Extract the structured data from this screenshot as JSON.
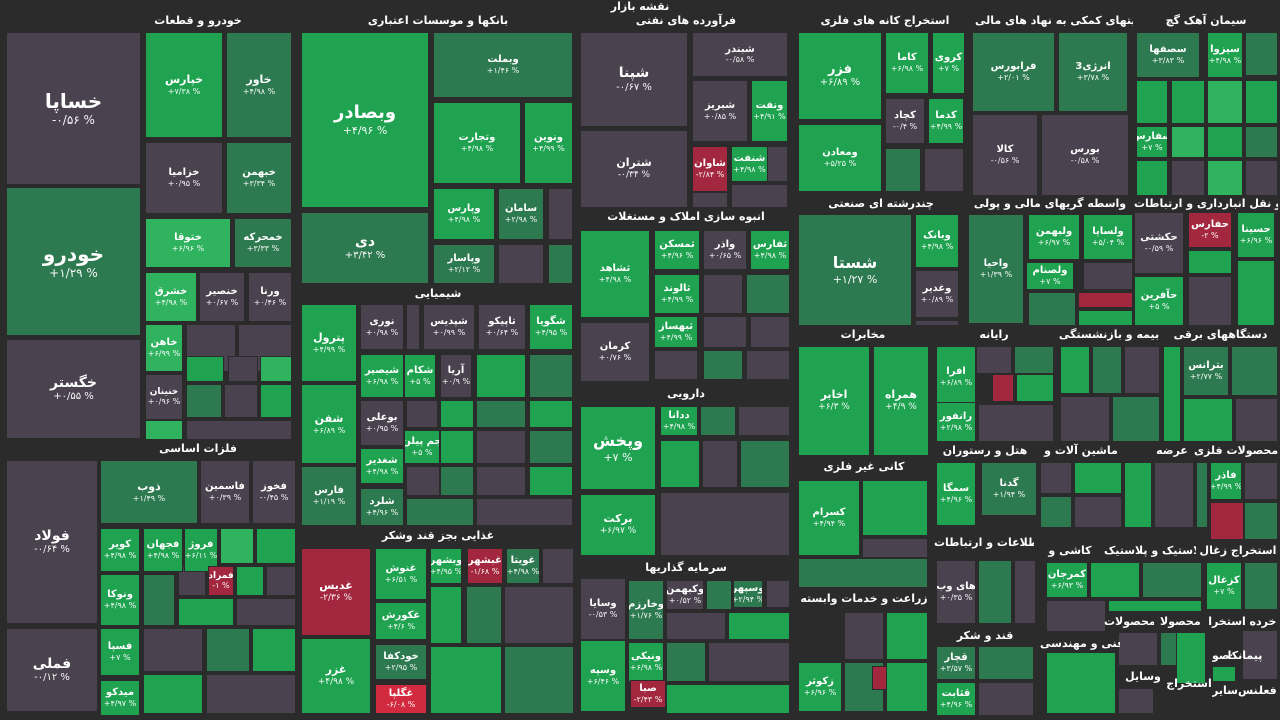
{
  "title": "نقشه بازار",
  "colors": {
    "background": "#2b2b2b",
    "neutral": "#4a424f",
    "green_light": "#2fb35f",
    "green_strong": "#1fa351",
    "green_dark": "#2e7a50",
    "red": "#a3283f",
    "red_bright": "#d22b3f"
  },
  "sectors": [
    {
      "name": "خودرو و قطعات"
    },
    {
      "name": "بانکها و موسسات اعتباری"
    },
    {
      "name": "فرآورده های نفتی"
    },
    {
      "name": "استخراج کانه های فلزی"
    },
    {
      "name": "فعالیتهای کمکی به نهاد های مالی"
    },
    {
      "name": "سیمان آهک گچ"
    },
    {
      "name": "انبوه سازی املاک و مستغلات"
    },
    {
      "name": "چندرشته ای صنعتی"
    },
    {
      "name": "واسطه گریهای مالی و پولی"
    },
    {
      "name": "حمل و نقل انبارداری و ارتباطات"
    },
    {
      "name": "شیمیایی"
    },
    {
      "name": "فلزات اساسی"
    },
    {
      "name": "دارویی"
    },
    {
      "name": "مخابرات"
    },
    {
      "name": "رایانه"
    },
    {
      "name": "بیمه و بازنشستگی"
    },
    {
      "name": "دستگاههای برقی"
    },
    {
      "name": "کانی غیر فلزی"
    },
    {
      "name": "هتل و رستوران"
    },
    {
      "name": "ماشین آلات و"
    },
    {
      "name": "عرضه"
    },
    {
      "name": "محصولات فلزی"
    },
    {
      "name": "غذایی بجز قند وشکر"
    },
    {
      "name": "سرمایه گذاریها"
    },
    {
      "name": "اطلاعات و ارتباطات"
    },
    {
      "name": "کاشی و"
    },
    {
      "name": "لاستیک و پلاستیک"
    },
    {
      "name": "استخراج زغال"
    },
    {
      "name": "زراعت و خدمات وابسته"
    },
    {
      "name": "قند و شکر"
    },
    {
      "name": "محصولات"
    },
    {
      "name": "محصولا"
    },
    {
      "name": "استخرا"
    },
    {
      "name": "خرده"
    },
    {
      "name": "فنی و مهندسی"
    },
    {
      "name": "پیمانکا"
    },
    {
      "name": "محصو"
    },
    {
      "name": "وسایل"
    },
    {
      "name": "استخراج"
    },
    {
      "name": "فعا"
    },
    {
      "name": "منس"
    },
    {
      "name": "سایر"
    }
  ],
  "tiles": [
    {
      "symbol": "خساپا",
      "change": "-۰/۵۶ %",
      "tone": "neutral"
    },
    {
      "symbol": "خودرو",
      "change": "+۱/۲۹ %",
      "tone": "green_dark"
    },
    {
      "symbol": "خگستر",
      "change": "+۰/۵۵ %",
      "tone": "neutral"
    },
    {
      "symbol": "خپارس",
      "change": "+۷/۳۸ %",
      "tone": "green_strong"
    },
    {
      "symbol": "خاور",
      "change": "+۴/۹۸ %",
      "tone": "green_dark"
    },
    {
      "symbol": "خزامیا",
      "change": "+۰/۹۵ %",
      "tone": "neutral"
    },
    {
      "symbol": "خبهمن",
      "change": "+۳/۳۴ %",
      "tone": "green_dark"
    },
    {
      "symbol": "ختوقا",
      "change": "+۶/۹۶ %",
      "tone": "green_light"
    },
    {
      "symbol": "خمحرکه",
      "change": "+۳/۳۳ %",
      "tone": "green_dark"
    },
    {
      "symbol": "خشرق",
      "change": "+۴/۹۸ %",
      "tone": "green_light"
    },
    {
      "symbol": "خنصیر",
      "change": "+۰/۶۷ %",
      "tone": "neutral"
    },
    {
      "symbol": "ورنا",
      "change": "+۰/۴۶ %",
      "tone": "neutral"
    },
    {
      "symbol": "خاهن",
      "change": "+۶/۹۹ %",
      "tone": "green_light"
    },
    {
      "symbol": "خنینان",
      "change": "+۰/۹۶ %",
      "tone": "neutral"
    },
    {
      "symbol": "وبصادر",
      "change": "+۴/۹۶ %",
      "tone": "green_strong"
    },
    {
      "symbol": "دی",
      "change": "+۳/۴۲ %",
      "tone": "green_dark"
    },
    {
      "symbol": "وبملت",
      "change": "+۱/۴۶ %",
      "tone": "green_dark"
    },
    {
      "symbol": "وتجارت",
      "change": "+۴/۹۸ %",
      "tone": "green_strong"
    },
    {
      "symbol": "ونوین",
      "change": "+۴/۹۹ %",
      "tone": "green_strong"
    },
    {
      "symbol": "وپارس",
      "change": "+۴/۹۸ %",
      "tone": "green_strong"
    },
    {
      "symbol": "سامان",
      "change": "+۲/۹۸ %",
      "tone": "green_dark"
    },
    {
      "symbol": "وپاسار",
      "change": "+۲/۱۲ %",
      "tone": "green_dark"
    },
    {
      "symbol": "شپنا",
      "change": "-۰/۶۷ %",
      "tone": "neutral"
    },
    {
      "symbol": "شتران",
      "change": "-۰/۳۴ %",
      "tone": "neutral"
    },
    {
      "symbol": "شبندر",
      "change": "-۰/۵۸ %",
      "tone": "neutral"
    },
    {
      "symbol": "شبریز",
      "change": "+۰/۸۵ %",
      "tone": "neutral"
    },
    {
      "symbol": "ونفت",
      "change": "+۴/۹۱ %",
      "tone": "green_strong"
    },
    {
      "symbol": "شاوان",
      "change": "-۲/۸۴ %",
      "tone": "red"
    },
    {
      "symbol": "شنفت",
      "change": "+۴/۹۸ %",
      "tone": "green_strong"
    },
    {
      "symbol": "فزر",
      "change": "+۶/۸۹ %",
      "tone": "green_strong"
    },
    {
      "symbol": "ومعادن",
      "change": "+۵/۲۵ %",
      "tone": "green_strong"
    },
    {
      "symbol": "کاما",
      "change": "+۶/۹۸ %",
      "tone": "green_strong"
    },
    {
      "symbol": "کروی",
      "change": "+۷ %",
      "tone": "green_strong"
    },
    {
      "symbol": "کچاد",
      "change": "-۰/۴ %",
      "tone": "neutral"
    },
    {
      "symbol": "کدما",
      "change": "+۴/۹۹ %",
      "tone": "green_strong"
    },
    {
      "symbol": "فرابورس",
      "change": "+۲/۰۱ %",
      "tone": "green_dark"
    },
    {
      "symbol": "انرژی3",
      "change": "+۳/۷۸ %",
      "tone": "green_dark"
    },
    {
      "symbol": "کالا",
      "change": "-۰/۵۶ %",
      "tone": "neutral"
    },
    {
      "symbol": "بورس",
      "change": "-۰/۵۸ %",
      "tone": "neutral"
    },
    {
      "symbol": "سصفها",
      "change": "+۳/۸۳ %",
      "tone": "green_dark"
    },
    {
      "symbol": "سیزوا",
      "change": "+۴/۹۸ %",
      "tone": "green_strong"
    },
    {
      "symbol": "سفارس",
      "change": "+۷ %",
      "tone": "green_strong"
    },
    {
      "symbol": "ثشاهد",
      "change": "+۴/۹۸ %",
      "tone": "green_strong"
    },
    {
      "symbol": "ثمسکن",
      "change": "+۴/۹۶ %",
      "tone": "green_strong"
    },
    {
      "symbol": "واذر",
      "change": "+۰/۶۵ %",
      "tone": "neutral"
    },
    {
      "symbol": "ثفارس",
      "change": "+۴/۹۸ %",
      "tone": "green_strong"
    },
    {
      "symbol": "ثالوند",
      "change": "+۴/۹۹ %",
      "tone": "green_strong"
    },
    {
      "symbol": "ثبهساز",
      "change": "+۴/۹۹ %",
      "tone": "green_strong"
    },
    {
      "symbol": "کرمان",
      "change": "+۰/۷۶ %",
      "tone": "neutral"
    },
    {
      "symbol": "شستا",
      "change": "+۱/۲۷ %",
      "tone": "green_dark"
    },
    {
      "symbol": "وبانک",
      "change": "+۴/۹۸ %",
      "tone": "green_strong"
    },
    {
      "symbol": "وغدیر",
      "change": "+۰/۸۹ %",
      "tone": "neutral"
    },
    {
      "symbol": "واحیا",
      "change": "+۱/۳۹ %",
      "tone": "green_dark"
    },
    {
      "symbol": "ولبهمن",
      "change": "+۶/۹۷ %",
      "tone": "green_strong"
    },
    {
      "symbol": "ولساپا",
      "change": "+۵/۰۴ %",
      "tone": "green_strong"
    },
    {
      "symbol": "ولصنام",
      "change": "+۷ %",
      "tone": "green_strong"
    },
    {
      "symbol": "حسینا",
      "change": "+۶/۹۶ %",
      "tone": "green_strong"
    },
    {
      "symbol": "حکشتی",
      "change": "-۰/۵۹ %",
      "tone": "neutral"
    },
    {
      "symbol": "حفارس",
      "change": "-۲ %",
      "tone": "red"
    },
    {
      "symbol": "حآفرین",
      "change": "+۵ %",
      "tone": "green_strong"
    },
    {
      "symbol": "پترول",
      "change": "+۴/۹۹ %",
      "tone": "green_strong"
    },
    {
      "symbol": "شفن",
      "change": "+۶/۸۹ %",
      "tone": "green_strong"
    },
    {
      "symbol": "فارس",
      "change": "+۱/۱۹ %",
      "tone": "green_dark"
    },
    {
      "symbol": "نوری",
      "change": "+۰/۹۸ %",
      "tone": "neutral"
    },
    {
      "symbol": "شپدیس",
      "change": "+۰/۹۹ %",
      "tone": "neutral"
    },
    {
      "symbol": "تاپیکو",
      "change": "+۰/۶۴ %",
      "tone": "neutral"
    },
    {
      "symbol": "شگویا",
      "change": "+۴/۹۵ %",
      "tone": "green_strong"
    },
    {
      "symbol": "شیصیر",
      "change": "+۶/۹۸ %",
      "tone": "green_strong"
    },
    {
      "symbol": "شکام",
      "change": "+۵ %",
      "tone": "green_strong"
    },
    {
      "symbol": "آریا",
      "change": "+۰/۹ %",
      "tone": "neutral"
    },
    {
      "symbol": "بوعلی",
      "change": "+۰/۹۵ %",
      "tone": "neutral"
    },
    {
      "symbol": "جم پیلن",
      "change": "+۵ %",
      "tone": "green_strong"
    },
    {
      "symbol": "شغدیر",
      "change": "+۴/۹۸ %",
      "tone": "green_strong"
    },
    {
      "symbol": "شلرد",
      "change": "+۴/۹۶ %",
      "tone": "green_dark"
    },
    {
      "symbol": "فولاد",
      "change": "-۰/۶۴ %",
      "tone": "neutral"
    },
    {
      "symbol": "فملی",
      "change": "-۰/۱۲ %",
      "tone": "neutral"
    },
    {
      "symbol": "ذوب",
      "change": "+۱/۴۹ %",
      "tone": "green_dark"
    },
    {
      "symbol": "فاسمین",
      "change": "+۰/۳۹ %",
      "tone": "neutral"
    },
    {
      "symbol": "فخوز",
      "change": "-۰/۴۵ %",
      "tone": "neutral"
    },
    {
      "symbol": "کویر",
      "change": "+۴/۹۸ %",
      "tone": "green_strong"
    },
    {
      "symbol": "فجهان",
      "change": "+۴/۹۸ %",
      "tone": "green_strong"
    },
    {
      "symbol": "فروژ",
      "change": "+۶/۱۱ %",
      "tone": "green_strong"
    },
    {
      "symbol": "ونوکا",
      "change": "+۴/۹۸ %",
      "tone": "green_strong"
    },
    {
      "symbol": "فمراد",
      "change": "-۱ %",
      "tone": "red"
    },
    {
      "symbol": "فسپا",
      "change": "+۷ %",
      "tone": "green_strong"
    },
    {
      "symbol": "میدکو",
      "change": "+۴/۹۷ %",
      "tone": "green_strong"
    },
    {
      "symbol": "وپخش",
      "change": "+۷ %",
      "tone": "green_strong"
    },
    {
      "symbol": "برکت",
      "change": "+۶/۹۷ %",
      "tone": "green_strong"
    },
    {
      "symbol": "ددانا",
      "change": "+۴/۹۸ %",
      "tone": "green_strong"
    },
    {
      "symbol": "اخابر",
      "change": "+۶/۳ %",
      "tone": "green_strong"
    },
    {
      "symbol": "همراه",
      "change": "+۴/۹ %",
      "tone": "green_strong"
    },
    {
      "symbol": "افرا",
      "change": "+۶/۸۹ %",
      "tone": "green_strong"
    },
    {
      "symbol": "رانفور",
      "change": "+۲/۹۸ %",
      "tone": "green_strong"
    },
    {
      "symbol": "بترانس",
      "change": "+۲/۷۷ %",
      "tone": "green_dark"
    },
    {
      "symbol": "کسرام",
      "change": "+۴/۹۴ %",
      "tone": "green_strong"
    },
    {
      "symbol": "سمگا",
      "change": "+۴/۹۶ %",
      "tone": "green_strong"
    },
    {
      "symbol": "گدنا",
      "change": "+۱/۹۴ %",
      "tone": "green_dark"
    },
    {
      "symbol": "فاذر",
      "change": "+۴/۹۹ %",
      "tone": "green_strong"
    },
    {
      "symbol": "غدیس",
      "change": "-۲/۳۶ %",
      "tone": "red"
    },
    {
      "symbol": "غزر",
      "change": "+۴/۹۸ %",
      "tone": "green_strong"
    },
    {
      "symbol": "غنوش",
      "change": "+۶/۵۱ %",
      "tone": "green_strong"
    },
    {
      "symbol": "وبشهر",
      "change": "+۴/۹۵ %",
      "tone": "green_strong"
    },
    {
      "symbol": "غبشهر",
      "change": "-۱/۶۸ %",
      "tone": "red"
    },
    {
      "symbol": "غویتا",
      "change": "+۴/۹۸ %",
      "tone": "green_dark"
    },
    {
      "symbol": "غکورش",
      "change": "+۴/۶ %",
      "tone": "green_strong"
    },
    {
      "symbol": "خودکفا",
      "change": "+۲/۹۵ %",
      "tone": "green_dark"
    },
    {
      "symbol": "غگلپا",
      "change": "-۶/۰۸ %",
      "tone": "red_bright"
    },
    {
      "symbol": "وسایا",
      "change": "-۰/۵۳ %",
      "tone": "neutral"
    },
    {
      "symbol": "وسپه",
      "change": "+۶/۴۶ %",
      "tone": "green_strong"
    },
    {
      "symbol": "وخارزم",
      "change": "+۱/۷۶ %",
      "tone": "green_dark"
    },
    {
      "symbol": "وکبهمن",
      "change": "+۰/۵۲ %",
      "tone": "neutral"
    },
    {
      "symbol": "وسپهر",
      "change": "+۲/۹۴ %",
      "tone": "green_dark"
    },
    {
      "symbol": "ونیکی",
      "change": "+۶/۹۸ %",
      "tone": "green_strong"
    },
    {
      "symbol": "صبا",
      "change": "-۲/۴۳ %",
      "tone": "red"
    },
    {
      "symbol": "های وب",
      "change": "+۰/۳۵ %",
      "tone": "neutral"
    },
    {
      "symbol": "زکوثر",
      "change": "+۶/۹۶ %",
      "tone": "green_strong"
    },
    {
      "symbol": "قچار",
      "change": "+۳/۵۷ %",
      "tone": "green_dark"
    },
    {
      "symbol": "قثابت",
      "change": "+۴/۹۶ %",
      "tone": "green_strong"
    },
    {
      "symbol": "کمرجان",
      "change": "+۶/۹۳ %",
      "tone": "green_strong"
    },
    {
      "symbol": "کزغال",
      "change": "+۷ %",
      "tone": "green_strong"
    }
  ]
}
